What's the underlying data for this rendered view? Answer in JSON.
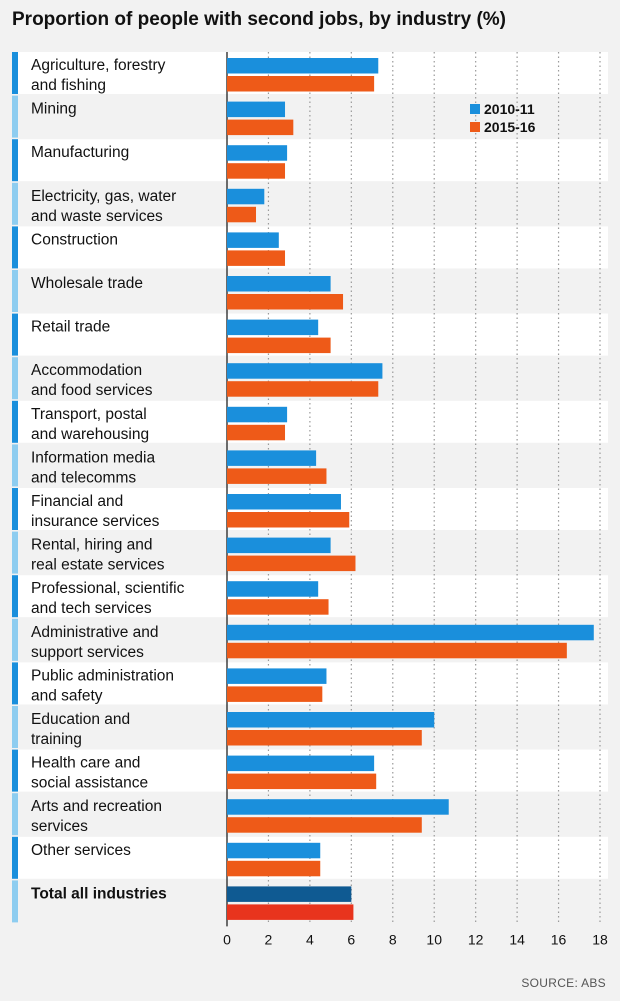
{
  "chart_data": {
    "type": "bar",
    "orientation": "horizontal",
    "title": "Proportion of people with second jobs, by industry (%)",
    "xlabel": "",
    "ylabel": "",
    "xlim": [
      0,
      18
    ],
    "xticks": [
      0,
      2,
      4,
      6,
      8,
      10,
      12,
      14,
      16,
      18
    ],
    "grid": "vertical dotted",
    "legend_position": "top-right",
    "categories": [
      [
        "Agriculture, forestry",
        "and fishing"
      ],
      [
        "Mining"
      ],
      [
        "Manufacturing"
      ],
      [
        "Electricity, gas, water",
        "and waste services"
      ],
      [
        "Construction"
      ],
      [
        "Wholesale trade"
      ],
      [
        "Retail trade"
      ],
      [
        "Accommodation",
        "and food services"
      ],
      [
        "Transport, postal",
        "and warehousing"
      ],
      [
        "Information media",
        "and telecomms"
      ],
      [
        "Financial and",
        "insurance services"
      ],
      [
        "Rental, hiring and",
        "real estate services"
      ],
      [
        "Professional, scientific",
        "and tech services"
      ],
      [
        "Administrative and",
        "support services"
      ],
      [
        "Public administration",
        "and safety"
      ],
      [
        "Education and",
        "training"
      ],
      [
        "Health care and",
        "social assistance"
      ],
      [
        "Arts and recreation",
        "services"
      ],
      [
        "Other services"
      ],
      [
        "Total all industries"
      ]
    ],
    "highlight_last_category": true,
    "series": [
      {
        "name": "2010-11",
        "color": "#1a8fdc",
        "highlight_color": "#0f5a92",
        "values": [
          7.3,
          2.8,
          2.9,
          1.8,
          2.5,
          5.0,
          4.4,
          7.5,
          2.9,
          4.3,
          5.5,
          5.0,
          4.4,
          17.7,
          4.8,
          10.0,
          7.1,
          10.7,
          4.5,
          6.0
        ]
      },
      {
        "name": "2015-16",
        "color": "#ee5a18",
        "highlight_color": "#e8341d",
        "values": [
          7.1,
          3.2,
          2.8,
          1.4,
          2.8,
          5.6,
          5.0,
          7.3,
          2.8,
          4.8,
          5.9,
          6.2,
          4.9,
          16.4,
          4.6,
          9.4,
          7.2,
          9.4,
          4.5,
          6.1
        ]
      }
    ],
    "source": "SOURCE: ABS"
  },
  "style": {
    "row_bg_a": "#ffffff",
    "row_bg_b": "#f2f2f2",
    "accent_dark": "#1a8fdc",
    "accent_light": "#8ecdf0"
  }
}
